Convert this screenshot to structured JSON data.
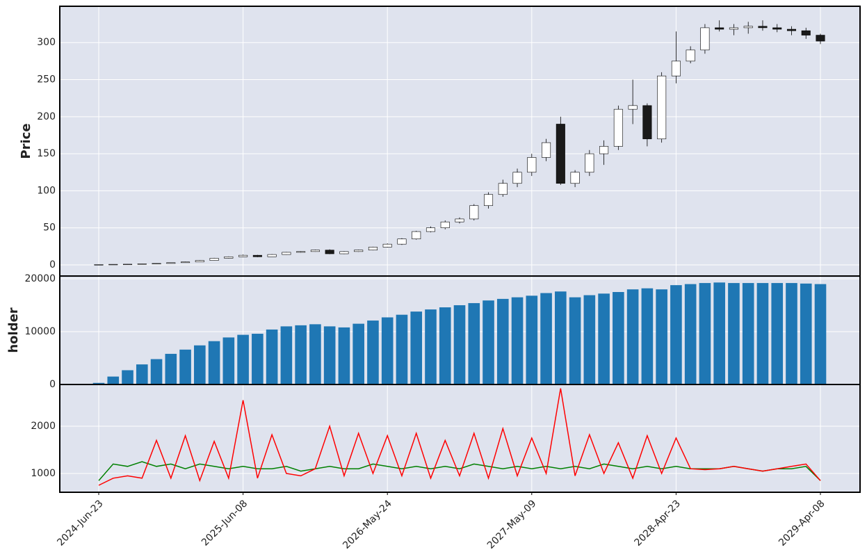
{
  "chart_data": [
    {
      "type": "candlestick",
      "ylabel": "Price",
      "categories": [
        "2024-Jun-23",
        null,
        null,
        null,
        null,
        null,
        null,
        null,
        null,
        null,
        "2025-Jun-08",
        null,
        null,
        null,
        null,
        null,
        null,
        null,
        null,
        null,
        "2026-May-24",
        null,
        null,
        null,
        null,
        null,
        null,
        null,
        null,
        null,
        "2027-May-09",
        null,
        null,
        null,
        null,
        null,
        null,
        null,
        null,
        null,
        "2028-Apr-23",
        null,
        null,
        null,
        null,
        null,
        null,
        null,
        null,
        null,
        "2029-Apr-08"
      ],
      "open": [
        0.3,
        0.5,
        0.8,
        1,
        1.5,
        2,
        3,
        4,
        6,
        9,
        11,
        13,
        11,
        14,
        17,
        18,
        20,
        15,
        18,
        20,
        24,
        28,
        35,
        45,
        50,
        58,
        62,
        80,
        95,
        110,
        125,
        145,
        190,
        110,
        125,
        150,
        160,
        210,
        215,
        170,
        255,
        275,
        290,
        320,
        318,
        320,
        322,
        320,
        318,
        316,
        310
      ],
      "high": [
        0.6,
        0.9,
        1.1,
        1.6,
        2.1,
        3.2,
        4.3,
        6.4,
        9.5,
        11.5,
        14,
        13.5,
        14.5,
        17.5,
        18.5,
        20.5,
        21,
        18.5,
        20.5,
        24.5,
        29,
        36,
        46,
        52,
        60,
        64,
        82,
        98,
        115,
        130,
        150,
        170,
        200,
        128,
        155,
        168,
        215,
        250,
        218,
        260,
        315,
        295,
        325,
        330,
        325,
        328,
        330,
        325,
        322,
        320,
        312
      ],
      "low": [
        0.2,
        0.4,
        0.7,
        0.9,
        1.4,
        1.9,
        2.9,
        3.8,
        5.8,
        8.7,
        10.6,
        10.5,
        10.8,
        13.7,
        16.6,
        17.7,
        14.5,
        14.6,
        17.6,
        19.6,
        23.5,
        27,
        34,
        44,
        48,
        56,
        60,
        76,
        92,
        105,
        120,
        140,
        108,
        105,
        120,
        135,
        155,
        190,
        160,
        165,
        245,
        272,
        285,
        315,
        310,
        312,
        316,
        314,
        310,
        305,
        298
      ],
      "close": [
        0.5,
        0.8,
        1,
        1.5,
        2,
        3,
        4,
        6,
        9,
        11,
        13,
        11,
        14,
        17,
        18,
        20,
        15,
        18,
        20,
        24,
        28,
        35,
        45,
        50,
        58,
        62,
        80,
        95,
        110,
        125,
        145,
        165,
        110,
        125,
        150,
        160,
        210,
        215,
        170,
        255,
        275,
        290,
        320,
        318,
        320,
        322,
        320,
        318,
        316,
        310,
        302
      ],
      "up_color": "#ffffff",
      "down_color": "#1a1a1a",
      "ylim": [
        -15,
        349
      ],
      "yticks": [
        0,
        50,
        100,
        150,
        200,
        250,
        300
      ],
      "grid": true
    },
    {
      "type": "bar",
      "ylabel": "holder",
      "color": "#1f77b4",
      "values": [
        300,
        1500,
        2700,
        3800,
        4800,
        5800,
        6600,
        7400,
        8200,
        8900,
        9400,
        9600,
        10400,
        11000,
        11200,
        11400,
        11000,
        10800,
        11500,
        12100,
        12700,
        13200,
        13800,
        14200,
        14600,
        15000,
        15400,
        15900,
        16200,
        16500,
        16800,
        17300,
        17600,
        16500,
        16900,
        17200,
        17500,
        18000,
        18200,
        18000,
        18800,
        19000,
        19200,
        19300,
        19200,
        19200,
        19200,
        19200,
        19200,
        19100,
        19000
      ],
      "ylim": [
        0,
        20526
      ],
      "yticks": [
        0,
        10000,
        20000
      ],
      "grid": true
    },
    {
      "type": "line",
      "series": [
        {
          "color": "#008000",
          "values": [
            850,
            1200,
            1150,
            1250,
            1150,
            1200,
            1100,
            1200,
            1150,
            1100,
            1150,
            1100,
            1100,
            1150,
            1050,
            1100,
            1150,
            1100,
            1100,
            1200,
            1150,
            1100,
            1150,
            1100,
            1150,
            1100,
            1200,
            1150,
            1100,
            1150,
            1100,
            1150,
            1100,
            1150,
            1100,
            1200,
            1150,
            1100,
            1150,
            1100,
            1150,
            1100,
            1100,
            1100,
            1150,
            1100,
            1050,
            1100,
            1100,
            1150,
            850
          ]
        },
        {
          "color": "#ff0000",
          "values": [
            750,
            900,
            950,
            900,
            1700,
            900,
            1800,
            850,
            1680,
            900,
            2550,
            900,
            1820,
            1000,
            950,
            1100,
            2000,
            950,
            1850,
            1000,
            1800,
            950,
            1850,
            900,
            1700,
            950,
            1850,
            900,
            1950,
            950,
            1750,
            1000,
            2800,
            950,
            1820,
            1000,
            1650,
            900,
            1800,
            1000,
            1750,
            1100,
            1080,
            1100,
            1150,
            1100,
            1050,
            1100,
            1150,
            1200,
            850
          ]
        }
      ],
      "ylim": [
        603,
        2882
      ],
      "yticks": [
        1000,
        2000
      ],
      "grid": true
    }
  ]
}
